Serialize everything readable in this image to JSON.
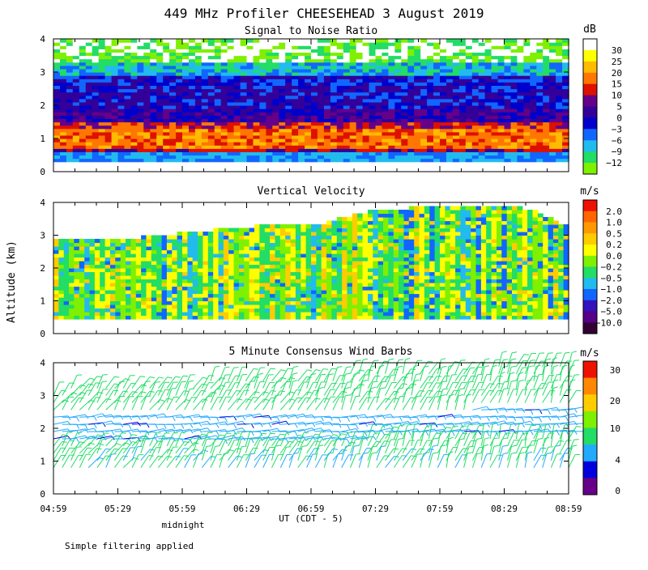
{
  "header": {
    "title": "449 MHz Profiler CHEESEHEAD  3 August 2019"
  },
  "y_axis_label": "Altitude (km)",
  "x_axis": {
    "label": "UT  (CDT - 5)",
    "ticks": [
      "04:59",
      "05:29",
      "05:59",
      "06:29",
      "06:59",
      "07:29",
      "07:59",
      "08:29",
      "08:59"
    ],
    "annotation": "midnight"
  },
  "footer_note": "Simple filtering applied",
  "colors": {
    "snr": [
      "#7ff000",
      "#22dd66",
      "#22bbee",
      "#1166ff",
      "#0000cc",
      "#330099",
      "#660088",
      "#dd1100",
      "#ff7700",
      "#ffbb00",
      "#ffff00",
      "#ffffff"
    ],
    "vv": [
      "#330033",
      "#550088",
      "#3311bb",
      "#1166ff",
      "#22bbee",
      "#22dd66",
      "#7ff000",
      "#ffff00",
      "#ffcc00",
      "#ff9900",
      "#ff6600",
      "#ee1100"
    ],
    "wind": [
      "#660088",
      "#0000dd",
      "#22aaff",
      "#22dd66",
      "#7ff000",
      "#ffcc00",
      "#ff8800",
      "#ee1100"
    ]
  },
  "chart_data": [
    {
      "type": "heatmap",
      "title": "Signal to Noise Ratio",
      "units": "dB",
      "ylabel": "Altitude (km)",
      "ylim": [
        0,
        4
      ],
      "y_ticks": [
        "0",
        "1",
        "2",
        "3",
        "4"
      ],
      "x_ticks": [
        "04:59",
        "05:29",
        "05:59",
        "06:29",
        "06:59",
        "07:29",
        "07:59",
        "08:29",
        "08:59"
      ],
      "colorbar_labels": [
        "30",
        "25",
        "20",
        "15",
        "10",
        "5",
        "0",
        "−3",
        "−6",
        "−9",
        "−12"
      ],
      "layers": [
        {
          "alt_range_km": [
            0.3,
            0.6
          ],
          "value_db": -9
        },
        {
          "alt_range_km": [
            0.6,
            1.5
          ],
          "value_db": 12
        },
        {
          "alt_range_km": [
            1.5,
            2.8
          ],
          "value_db": 3
        },
        {
          "alt_range_km": [
            2.8,
            3.5
          ],
          "value_db": -6
        },
        {
          "alt_range_km": [
            3.5,
            4.0
          ],
          "value_db": -10
        }
      ]
    },
    {
      "type": "heatmap",
      "title": "Vertical Velocity",
      "units": "m/s",
      "ylabel": "Altitude (km)",
      "ylim": [
        0,
        4
      ],
      "y_ticks": [
        "0",
        "1",
        "2",
        "3",
        "4"
      ],
      "x_ticks": [
        "04:59",
        "05:29",
        "05:59",
        "06:29",
        "06:59",
        "07:29",
        "07:59",
        "08:29",
        "08:59"
      ],
      "colorbar_labels": [
        "2.0",
        "1.0",
        "0.5",
        "0.2",
        "0.0",
        "−0.2",
        "−0.5",
        "−1.0",
        "−2.0",
        "−5.0",
        "−10.0"
      ],
      "data_top_km": [
        2.9,
        2.9,
        2.9,
        3.0,
        3.1,
        3.2,
        3.3,
        3.3,
        3.4,
        3.7,
        3.8,
        3.9,
        3.9,
        3.9,
        3.8,
        3.3
      ],
      "data_bottom_km": 0.5
    },
    {
      "type": "scatter",
      "title": "5 Minute Consensus Wind Barbs",
      "units": "m/s",
      "ylabel": "Altitude (km)",
      "ylim": [
        0,
        4
      ],
      "y_ticks": [
        "0",
        "1",
        "2",
        "3",
        "4"
      ],
      "x_ticks": [
        "04:59",
        "05:29",
        "05:59",
        "06:29",
        "06:59",
        "07:29",
        "07:59",
        "08:29",
        "08:59"
      ],
      "colorbar_labels": [
        "30",
        "20",
        "10",
        "4",
        "0"
      ],
      "low_speed_layer_km": [
        1.5,
        2.4
      ]
    }
  ]
}
